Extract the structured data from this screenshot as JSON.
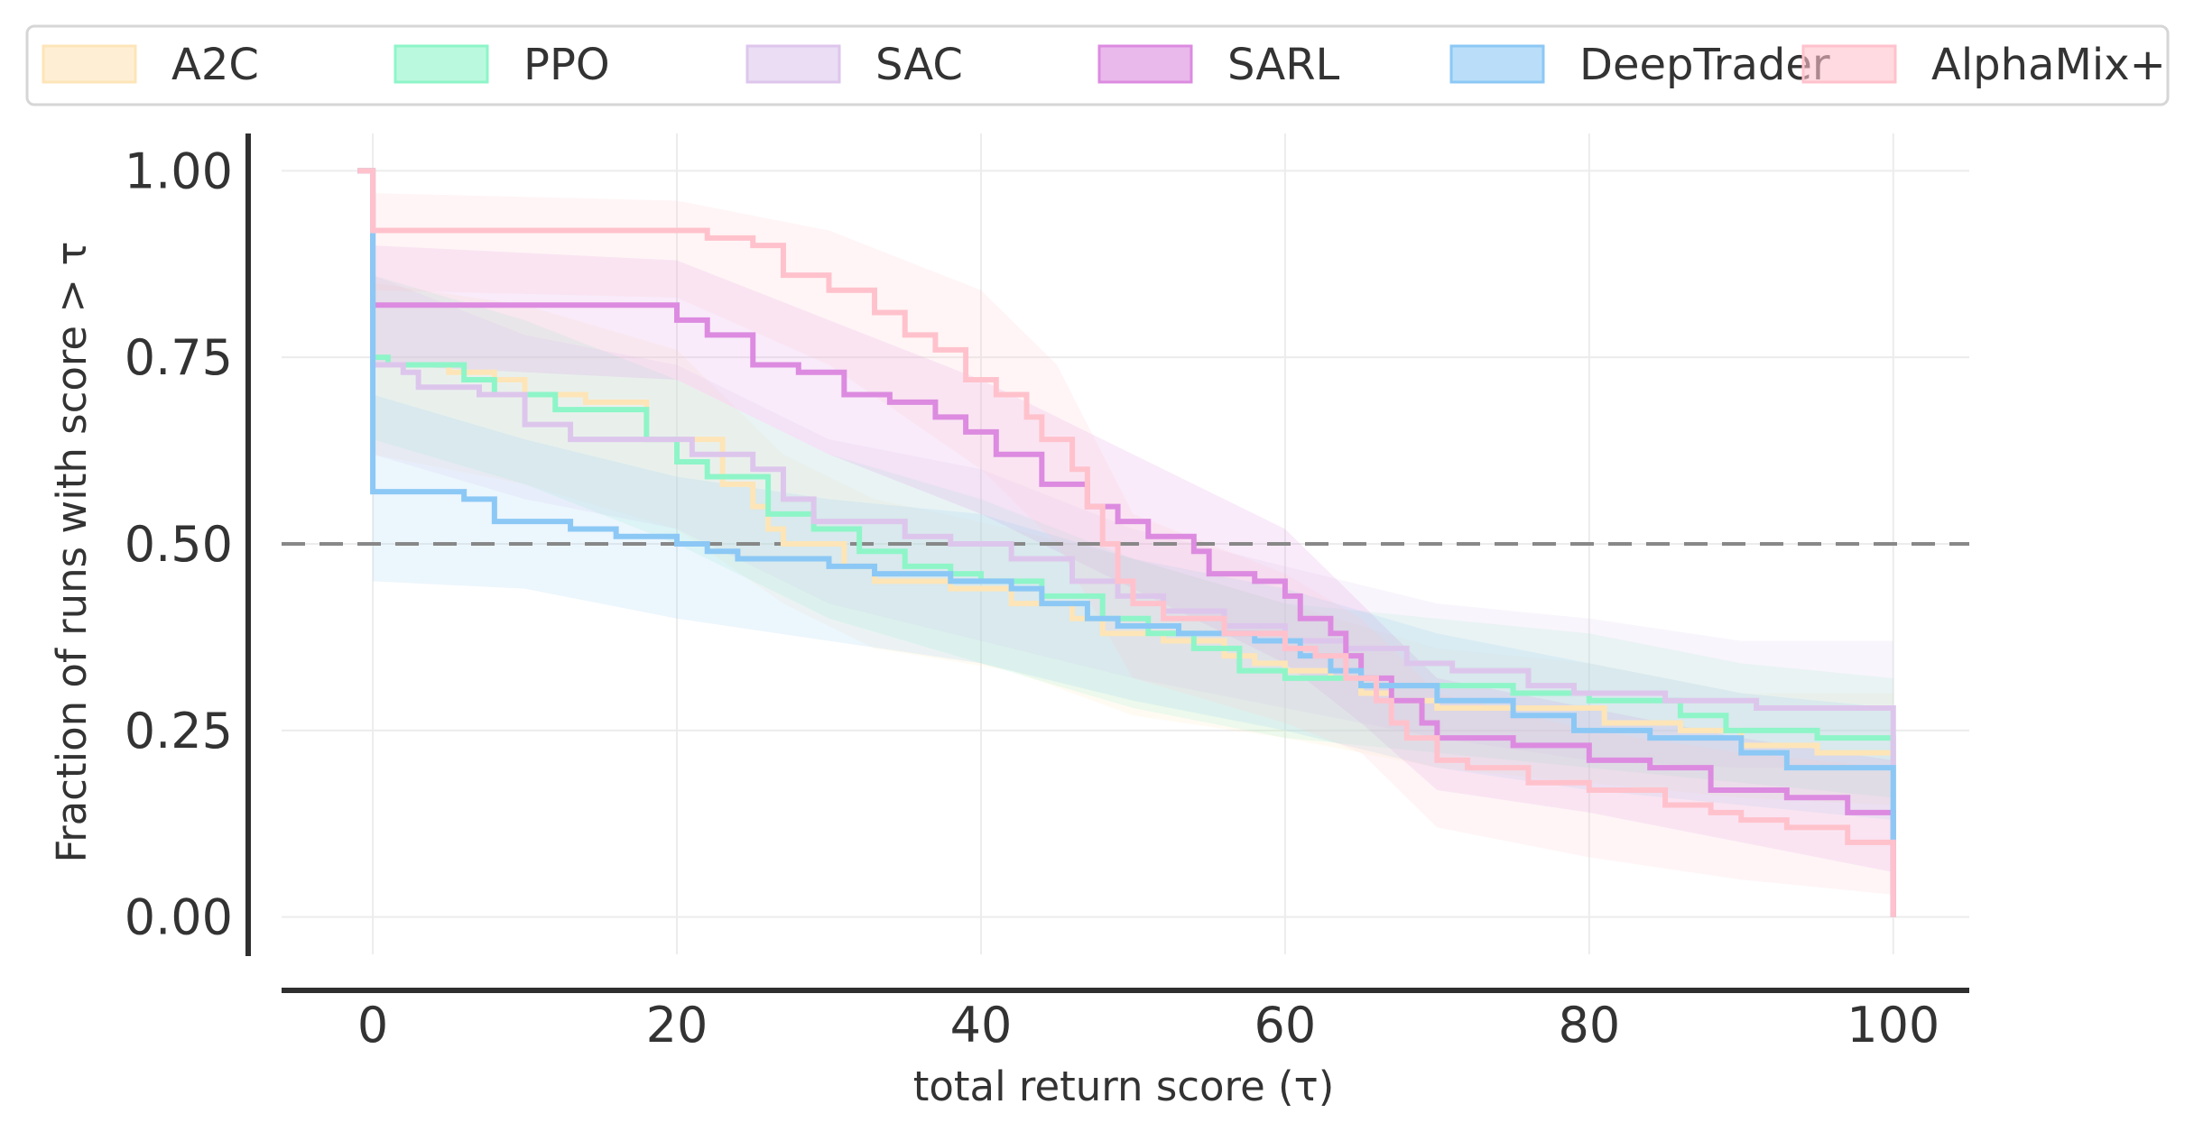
{
  "chart_data": {
    "type": "line",
    "title": "",
    "xlabel": "total return score (τ)",
    "ylabel": "Fraction of runs with score > τ",
    "xlim": [
      -6,
      105
    ],
    "ylim": [
      -0.05,
      1.05
    ],
    "x_ticks": [
      "0",
      "20",
      "40",
      "60",
      "80",
      "100"
    ],
    "y_ticks": [
      "0.00",
      "0.25",
      "0.50",
      "0.75",
      "1.00"
    ],
    "grid": true,
    "legend_position": "top",
    "reference_line": {
      "y": 0.5,
      "style": "dashed",
      "color": "#888888"
    },
    "series": [
      {
        "name": "A2C",
        "color": "#fde5b8",
        "points": [
          [
            -1,
            1.0
          ],
          [
            0,
            1.0
          ],
          [
            0,
            0.74
          ],
          [
            5,
            0.73
          ],
          [
            8,
            0.72
          ],
          [
            10,
            0.7
          ],
          [
            14,
            0.69
          ],
          [
            18,
            0.64
          ],
          [
            23,
            0.58
          ],
          [
            25,
            0.55
          ],
          [
            26,
            0.52
          ],
          [
            27,
            0.5
          ],
          [
            31,
            0.47
          ],
          [
            33,
            0.45
          ],
          [
            38,
            0.44
          ],
          [
            42,
            0.42
          ],
          [
            46,
            0.4
          ],
          [
            48,
            0.38
          ],
          [
            52,
            0.37
          ],
          [
            56,
            0.35
          ],
          [
            58,
            0.34
          ],
          [
            60,
            0.33
          ],
          [
            63,
            0.32
          ],
          [
            65,
            0.3
          ],
          [
            67,
            0.29
          ],
          [
            70,
            0.28
          ],
          [
            75,
            0.28
          ],
          [
            81,
            0.26
          ],
          [
            86,
            0.25
          ],
          [
            90,
            0.23
          ],
          [
            95,
            0.22
          ],
          [
            100,
            0.22
          ],
          [
            100,
            0.0
          ]
        ],
        "band": [
          [
            0,
            0.62,
            0.85
          ],
          [
            10,
            0.58,
            0.82
          ],
          [
            20,
            0.52,
            0.76
          ],
          [
            27,
            0.42,
            0.62
          ],
          [
            33,
            0.36,
            0.56
          ],
          [
            42,
            0.33,
            0.52
          ],
          [
            50,
            0.27,
            0.48
          ],
          [
            60,
            0.24,
            0.42
          ],
          [
            70,
            0.2,
            0.36
          ],
          [
            80,
            0.18,
            0.34
          ],
          [
            90,
            0.16,
            0.3
          ],
          [
            100,
            0.15,
            0.3
          ]
        ]
      },
      {
        "name": "PPO",
        "color": "#8ef5c8",
        "points": [
          [
            -1,
            1.0
          ],
          [
            0,
            1.0
          ],
          [
            0,
            0.75
          ],
          [
            1,
            0.74
          ],
          [
            6,
            0.72
          ],
          [
            8,
            0.7
          ],
          [
            12,
            0.68
          ],
          [
            18,
            0.64
          ],
          [
            20,
            0.61
          ],
          [
            22,
            0.59
          ],
          [
            26,
            0.54
          ],
          [
            29,
            0.52
          ],
          [
            32,
            0.49
          ],
          [
            35,
            0.47
          ],
          [
            38,
            0.46
          ],
          [
            40,
            0.45
          ],
          [
            44,
            0.43
          ],
          [
            48,
            0.4
          ],
          [
            51,
            0.38
          ],
          [
            54,
            0.36
          ],
          [
            57,
            0.33
          ],
          [
            60,
            0.32
          ],
          [
            65,
            0.31
          ],
          [
            70,
            0.31
          ],
          [
            75,
            0.3
          ],
          [
            80,
            0.29
          ],
          [
            86,
            0.27
          ],
          [
            89,
            0.25
          ],
          [
            95,
            0.24
          ],
          [
            100,
            0.23
          ],
          [
            100,
            0.0
          ]
        ],
        "band": [
          [
            0,
            0.64,
            0.86
          ],
          [
            10,
            0.58,
            0.8
          ],
          [
            20,
            0.5,
            0.72
          ],
          [
            30,
            0.4,
            0.62
          ],
          [
            40,
            0.34,
            0.56
          ],
          [
            50,
            0.28,
            0.48
          ],
          [
            60,
            0.24,
            0.42
          ],
          [
            70,
            0.22,
            0.4
          ],
          [
            80,
            0.2,
            0.38
          ],
          [
            90,
            0.18,
            0.34
          ],
          [
            100,
            0.16,
            0.32
          ]
        ]
      },
      {
        "name": "SAC",
        "color": "#ddc6ec",
        "points": [
          [
            -1,
            1.0
          ],
          [
            0,
            1.0
          ],
          [
            0,
            0.74
          ],
          [
            2,
            0.73
          ],
          [
            3,
            0.71
          ],
          [
            7,
            0.7
          ],
          [
            10,
            0.66
          ],
          [
            13,
            0.64
          ],
          [
            17,
            0.64
          ],
          [
            21,
            0.62
          ],
          [
            25,
            0.6
          ],
          [
            27,
            0.56
          ],
          [
            29,
            0.53
          ],
          [
            35,
            0.51
          ],
          [
            38,
            0.5
          ],
          [
            42,
            0.48
          ],
          [
            46,
            0.45
          ],
          [
            49,
            0.43
          ],
          [
            52,
            0.41
          ],
          [
            56,
            0.39
          ],
          [
            60,
            0.37
          ],
          [
            64,
            0.36
          ],
          [
            68,
            0.34
          ],
          [
            71,
            0.33
          ],
          [
            76,
            0.31
          ],
          [
            79,
            0.3
          ],
          [
            85,
            0.29
          ],
          [
            91,
            0.28
          ],
          [
            96,
            0.28
          ],
          [
            100,
            0.28
          ],
          [
            100,
            0.0
          ]
        ],
        "band": [
          [
            0,
            0.62,
            0.86
          ],
          [
            10,
            0.56,
            0.78
          ],
          [
            20,
            0.52,
            0.74
          ],
          [
            30,
            0.42,
            0.64
          ],
          [
            40,
            0.37,
            0.6
          ],
          [
            50,
            0.32,
            0.52
          ],
          [
            60,
            0.28,
            0.47
          ],
          [
            70,
            0.24,
            0.42
          ],
          [
            80,
            0.21,
            0.4
          ],
          [
            90,
            0.2,
            0.37
          ],
          [
            100,
            0.2,
            0.37
          ]
        ]
      },
      {
        "name": "SARL",
        "color": "#dc8be0",
        "points": [
          [
            -1,
            1.0
          ],
          [
            0,
            1.0
          ],
          [
            0,
            0.82
          ],
          [
            1,
            0.82
          ],
          [
            20,
            0.8
          ],
          [
            22,
            0.78
          ],
          [
            25,
            0.74
          ],
          [
            28,
            0.73
          ],
          [
            31,
            0.7
          ],
          [
            34,
            0.69
          ],
          [
            37,
            0.67
          ],
          [
            39,
            0.65
          ],
          [
            41,
            0.62
          ],
          [
            44,
            0.58
          ],
          [
            47,
            0.55
          ],
          [
            49,
            0.53
          ],
          [
            51,
            0.51
          ],
          [
            54,
            0.49
          ],
          [
            55,
            0.46
          ],
          [
            58,
            0.45
          ],
          [
            60,
            0.43
          ],
          [
            61,
            0.4
          ],
          [
            63,
            0.38
          ],
          [
            64,
            0.35
          ],
          [
            65,
            0.32
          ],
          [
            67,
            0.29
          ],
          [
            69,
            0.26
          ],
          [
            70,
            0.24
          ],
          [
            75,
            0.23
          ],
          [
            80,
            0.21
          ],
          [
            84,
            0.2
          ],
          [
            88,
            0.17
          ],
          [
            93,
            0.16
          ],
          [
            97,
            0.14
          ],
          [
            100,
            0.13
          ],
          [
            100,
            0.0
          ]
        ],
        "band": [
          [
            0,
            0.74,
            0.9
          ],
          [
            20,
            0.72,
            0.88
          ],
          [
            30,
            0.62,
            0.8
          ],
          [
            40,
            0.54,
            0.72
          ],
          [
            50,
            0.44,
            0.62
          ],
          [
            60,
            0.34,
            0.52
          ],
          [
            65,
            0.26,
            0.42
          ],
          [
            70,
            0.17,
            0.32
          ],
          [
            80,
            0.14,
            0.28
          ],
          [
            90,
            0.1,
            0.24
          ],
          [
            100,
            0.06,
            0.21
          ]
        ]
      },
      {
        "name": "DeepTrader",
        "color": "#8cc8f5",
        "points": [
          [
            -1,
            1.0
          ],
          [
            0,
            1.0
          ],
          [
            0,
            0.57
          ],
          [
            6,
            0.56
          ],
          [
            8,
            0.53
          ],
          [
            13,
            0.52
          ],
          [
            16,
            0.51
          ],
          [
            20,
            0.5
          ],
          [
            22,
            0.49
          ],
          [
            24,
            0.48
          ],
          [
            30,
            0.47
          ],
          [
            33,
            0.46
          ],
          [
            38,
            0.45
          ],
          [
            42,
            0.44
          ],
          [
            44,
            0.42
          ],
          [
            47,
            0.4
          ],
          [
            49,
            0.39
          ],
          [
            53,
            0.38
          ],
          [
            58,
            0.37
          ],
          [
            61,
            0.35
          ],
          [
            63,
            0.33
          ],
          [
            65,
            0.31
          ],
          [
            70,
            0.29
          ],
          [
            75,
            0.27
          ],
          [
            79,
            0.25
          ],
          [
            84,
            0.24
          ],
          [
            90,
            0.22
          ],
          [
            93,
            0.2
          ],
          [
            100,
            0.2
          ],
          [
            100,
            0.1
          ]
        ],
        "band": [
          [
            0,
            0.45,
            0.7
          ],
          [
            10,
            0.44,
            0.64
          ],
          [
            20,
            0.4,
            0.59
          ],
          [
            30,
            0.37,
            0.56
          ],
          [
            40,
            0.34,
            0.54
          ],
          [
            50,
            0.29,
            0.48
          ],
          [
            60,
            0.25,
            0.44
          ],
          [
            70,
            0.2,
            0.38
          ],
          [
            80,
            0.17,
            0.34
          ],
          [
            90,
            0.15,
            0.3
          ],
          [
            100,
            0.13,
            0.28
          ]
        ]
      },
      {
        "name": "AlphaMix+",
        "color": "#ffc2cc",
        "points": [
          [
            -1,
            1.0
          ],
          [
            0,
            1.0
          ],
          [
            0,
            0.92
          ],
          [
            22,
            0.91
          ],
          [
            25,
            0.9
          ],
          [
            27,
            0.86
          ],
          [
            30,
            0.84
          ],
          [
            33,
            0.81
          ],
          [
            35,
            0.78
          ],
          [
            37,
            0.76
          ],
          [
            39,
            0.72
          ],
          [
            41,
            0.7
          ],
          [
            43,
            0.67
          ],
          [
            44,
            0.64
          ],
          [
            46,
            0.6
          ],
          [
            47,
            0.55
          ],
          [
            48,
            0.5
          ],
          [
            49,
            0.45
          ],
          [
            50,
            0.42
          ],
          [
            52,
            0.4
          ],
          [
            56,
            0.38
          ],
          [
            60,
            0.36
          ],
          [
            62,
            0.35
          ],
          [
            64,
            0.32
          ],
          [
            66,
            0.29
          ],
          [
            67,
            0.26
          ],
          [
            68,
            0.24
          ],
          [
            70,
            0.21
          ],
          [
            72,
            0.2
          ],
          [
            76,
            0.18
          ],
          [
            80,
            0.17
          ],
          [
            85,
            0.15
          ],
          [
            88,
            0.14
          ],
          [
            90,
            0.13
          ],
          [
            93,
            0.12
          ],
          [
            97,
            0.1
          ],
          [
            100,
            0.1
          ],
          [
            100,
            0.0
          ]
        ],
        "band": [
          [
            0,
            0.84,
            0.97
          ],
          [
            20,
            0.83,
            0.96
          ],
          [
            30,
            0.74,
            0.92
          ],
          [
            40,
            0.6,
            0.84
          ],
          [
            45,
            0.5,
            0.74
          ],
          [
            50,
            0.32,
            0.54
          ],
          [
            60,
            0.26,
            0.46
          ],
          [
            65,
            0.22,
            0.4
          ],
          [
            70,
            0.12,
            0.3
          ],
          [
            80,
            0.08,
            0.25
          ],
          [
            90,
            0.05,
            0.22
          ],
          [
            100,
            0.03,
            0.2
          ]
        ]
      }
    ]
  }
}
